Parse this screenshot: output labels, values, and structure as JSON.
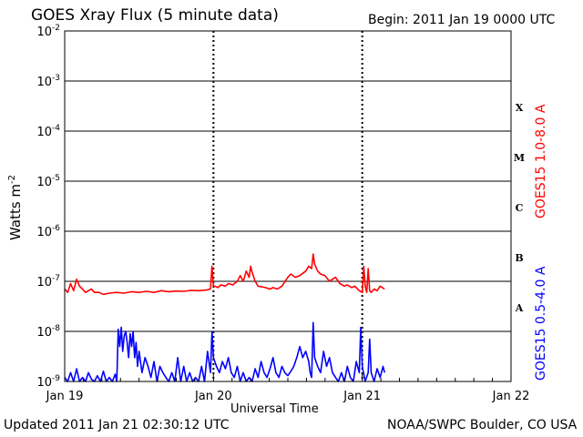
{
  "header": {
    "title": "GOES Xray Flux (5 minute data)",
    "begin": "Begin:  2011 Jan 19 0000 UTC"
  },
  "footer": {
    "updated": "Updated 2011 Jan 21 02:30:12 UTC",
    "credit": "NOAA/SWPC Boulder, CO USA"
  },
  "chart_data": {
    "type": "line",
    "title": "GOES Xray Flux (5 minute data)",
    "xlabel": "Universal Time",
    "ylabel_base": "Watts m",
    "ylabel_exp": "-2",
    "x_ticks": [
      "Jan 19",
      "Jan 20",
      "Jan 21",
      "Jan 22"
    ],
    "xlim_days": [
      0,
      3
    ],
    "y_scale": "log",
    "ylim": [
      1e-09,
      0.01
    ],
    "y_ticks": [
      {
        "base": "10",
        "exp": "-9",
        "value": 1e-09
      },
      {
        "base": "10",
        "exp": "-8",
        "value": 1e-08
      },
      {
        "base": "10",
        "exp": "-7",
        "value": 1e-07
      },
      {
        "base": "10",
        "exp": "-6",
        "value": 1e-06
      },
      {
        "base": "10",
        "exp": "-5",
        "value": 1e-05
      },
      {
        "base": "10",
        "exp": "-4",
        "value": 0.0001
      },
      {
        "base": "10",
        "exp": "-3",
        "value": 0.001
      },
      {
        "base": "10",
        "exp": "-2",
        "value": 0.01
      }
    ],
    "flare_classes": [
      {
        "label": "A",
        "value": 3e-08
      },
      {
        "label": "B",
        "value": 3e-07
      },
      {
        "label": "C",
        "value": 3e-06
      },
      {
        "label": "M",
        "value": 3e-05
      },
      {
        "label": "X",
        "value": 0.0003
      }
    ],
    "grid": "horizontal lines at each decade 1e-8 to 1e-3; dashed vertical lines at Jan 20 and Jan 21",
    "series": [
      {
        "name": "GOES15 1.0-8.0 A",
        "color": "#ff0000",
        "x_days": [
          0.0,
          0.02,
          0.04,
          0.06,
          0.08,
          0.1,
          0.12,
          0.14,
          0.16,
          0.18,
          0.2,
          0.23,
          0.26,
          0.3,
          0.35,
          0.4,
          0.45,
          0.5,
          0.55,
          0.6,
          0.65,
          0.7,
          0.75,
          0.8,
          0.85,
          0.9,
          0.95,
          0.98,
          0.99,
          1.0,
          1.01,
          1.03,
          1.05,
          1.08,
          1.1,
          1.13,
          1.16,
          1.18,
          1.2,
          1.22,
          1.24,
          1.25,
          1.26,
          1.28,
          1.3,
          1.35,
          1.38,
          1.4,
          1.43,
          1.46,
          1.5,
          1.52,
          1.55,
          1.58,
          1.62,
          1.64,
          1.66,
          1.67,
          1.68,
          1.7,
          1.72,
          1.75,
          1.78,
          1.8,
          1.82,
          1.85,
          1.88,
          1.9,
          1.93,
          1.95,
          1.98,
          2.0,
          2.01,
          2.02,
          2.03,
          2.04,
          2.05,
          2.06,
          2.08,
          2.1,
          2.12,
          2.15
        ],
        "flux": [
          7e-08,
          6e-08,
          9e-08,
          6.5e-08,
          1.1e-07,
          8e-08,
          7e-08,
          6e-08,
          6.5e-08,
          7e-08,
          6e-08,
          6e-08,
          5.5e-08,
          5.8e-08,
          6e-08,
          5.8e-08,
          6.2e-08,
          6e-08,
          6.3e-08,
          6e-08,
          6.5e-08,
          6.2e-08,
          6.4e-08,
          6.3e-08,
          6.6e-08,
          6.5e-08,
          6.7e-08,
          7e-08,
          2e-07,
          8e-08,
          8e-08,
          7.5e-08,
          8.5e-08,
          8e-08,
          9e-08,
          8.5e-08,
          1e-07,
          1.3e-07,
          1e-07,
          1.6e-07,
          1.2e-07,
          2e-07,
          1.5e-07,
          1e-07,
          8e-08,
          7.5e-08,
          7e-08,
          7.5e-08,
          7e-08,
          8e-08,
          1.2e-07,
          1.4e-07,
          1.2e-07,
          1.3e-07,
          1.6e-07,
          2e-07,
          1.8e-07,
          3.5e-07,
          2.2e-07,
          1.6e-07,
          1.4e-07,
          1.3e-07,
          1e-07,
          1.1e-07,
          1.2e-07,
          9e-08,
          8e-08,
          8.5e-08,
          7.5e-08,
          8e-08,
          6.5e-08,
          6e-08,
          2e-07,
          8e-08,
          6e-08,
          1.8e-07,
          6.5e-08,
          6e-08,
          7e-08,
          6.5e-08,
          8e-08,
          7e-08
        ]
      },
      {
        "name": "GOES15 0.5-4.0 A",
        "color": "#0000ff",
        "x_days": [
          0.0,
          0.02,
          0.04,
          0.06,
          0.08,
          0.1,
          0.12,
          0.14,
          0.16,
          0.18,
          0.2,
          0.22,
          0.24,
          0.26,
          0.28,
          0.3,
          0.32,
          0.34,
          0.35,
          0.36,
          0.37,
          0.38,
          0.39,
          0.4,
          0.41,
          0.42,
          0.43,
          0.44,
          0.45,
          0.46,
          0.47,
          0.48,
          0.49,
          0.5,
          0.52,
          0.54,
          0.56,
          0.58,
          0.6,
          0.62,
          0.64,
          0.66,
          0.68,
          0.7,
          0.72,
          0.74,
          0.76,
          0.78,
          0.8,
          0.82,
          0.84,
          0.86,
          0.88,
          0.9,
          0.92,
          0.94,
          0.96,
          0.98,
          0.99,
          1.0,
          1.02,
          1.04,
          1.06,
          1.08,
          1.1,
          1.12,
          1.14,
          1.16,
          1.18,
          1.2,
          1.22,
          1.24,
          1.26,
          1.28,
          1.3,
          1.32,
          1.34,
          1.36,
          1.38,
          1.4,
          1.42,
          1.44,
          1.46,
          1.48,
          1.5,
          1.52,
          1.54,
          1.56,
          1.58,
          1.6,
          1.62,
          1.64,
          1.65,
          1.66,
          1.67,
          1.68,
          1.7,
          1.72,
          1.74,
          1.76,
          1.78,
          1.8,
          1.82,
          1.84,
          1.86,
          1.88,
          1.9,
          1.92,
          1.94,
          1.96,
          1.98,
          1.99,
          2.0,
          2.02,
          2.04,
          2.05,
          2.06,
          2.08,
          2.1,
          2.12,
          2.14,
          2.15
        ],
        "flux": [
          1.2e-09,
          1e-09,
          1.5e-09,
          1e-09,
          1.8e-09,
          1e-09,
          1.2e-09,
          1e-09,
          1.5e-09,
          1.1e-09,
          1e-09,
          1.3e-09,
          1e-09,
          1.6e-09,
          1e-09,
          1.2e-09,
          1e-09,
          1.4e-09,
          1e-09,
          1.1e-08,
          5e-09,
          1.2e-08,
          4e-09,
          8e-09,
          1e-08,
          6e-09,
          3e-09,
          9e-09,
          5e-09,
          1e-08,
          3e-09,
          6e-09,
          2e-09,
          4e-09,
          1.5e-09,
          3e-09,
          2e-09,
          1.2e-09,
          2.5e-09,
          1e-09,
          2e-09,
          1.5e-09,
          1.2e-09,
          1e-09,
          1.5e-09,
          1e-09,
          3e-09,
          1e-09,
          2e-09,
          1e-09,
          1.5e-09,
          1e-09,
          1.2e-09,
          1e-09,
          2e-09,
          1e-09,
          4e-09,
          1.5e-09,
          1e-08,
          3e-09,
          2e-09,
          1.5e-09,
          2.5e-09,
          1.8e-09,
          3e-09,
          1.5e-09,
          1.2e-09,
          2e-09,
          1e-09,
          1.5e-09,
          1e-09,
          1.2e-09,
          1e-09,
          1.8e-09,
          1.2e-09,
          2.5e-09,
          1.5e-09,
          1.2e-09,
          1.8e-09,
          3e-09,
          1.5e-09,
          1.2e-09,
          2e-09,
          1.5e-09,
          1.3e-09,
          1.6e-09,
          2e-09,
          3e-09,
          5e-09,
          3e-09,
          4e-09,
          2.5e-09,
          1.5e-09,
          1.2e-09,
          1.5e-08,
          3e-09,
          2e-09,
          1.5e-09,
          4e-09,
          2e-09,
          3e-09,
          1.5e-09,
          1.2e-09,
          1e-09,
          1.5e-09,
          1e-09,
          2e-09,
          1.2e-09,
          1e-09,
          2.5e-09,
          1.5e-09,
          1.2e-08,
          2e-09,
          1e-09,
          1.5e-09,
          7e-09,
          1.5e-09,
          1e-09,
          1.8e-09,
          1.2e-09,
          2e-09,
          1.5e-09
        ]
      }
    ]
  }
}
